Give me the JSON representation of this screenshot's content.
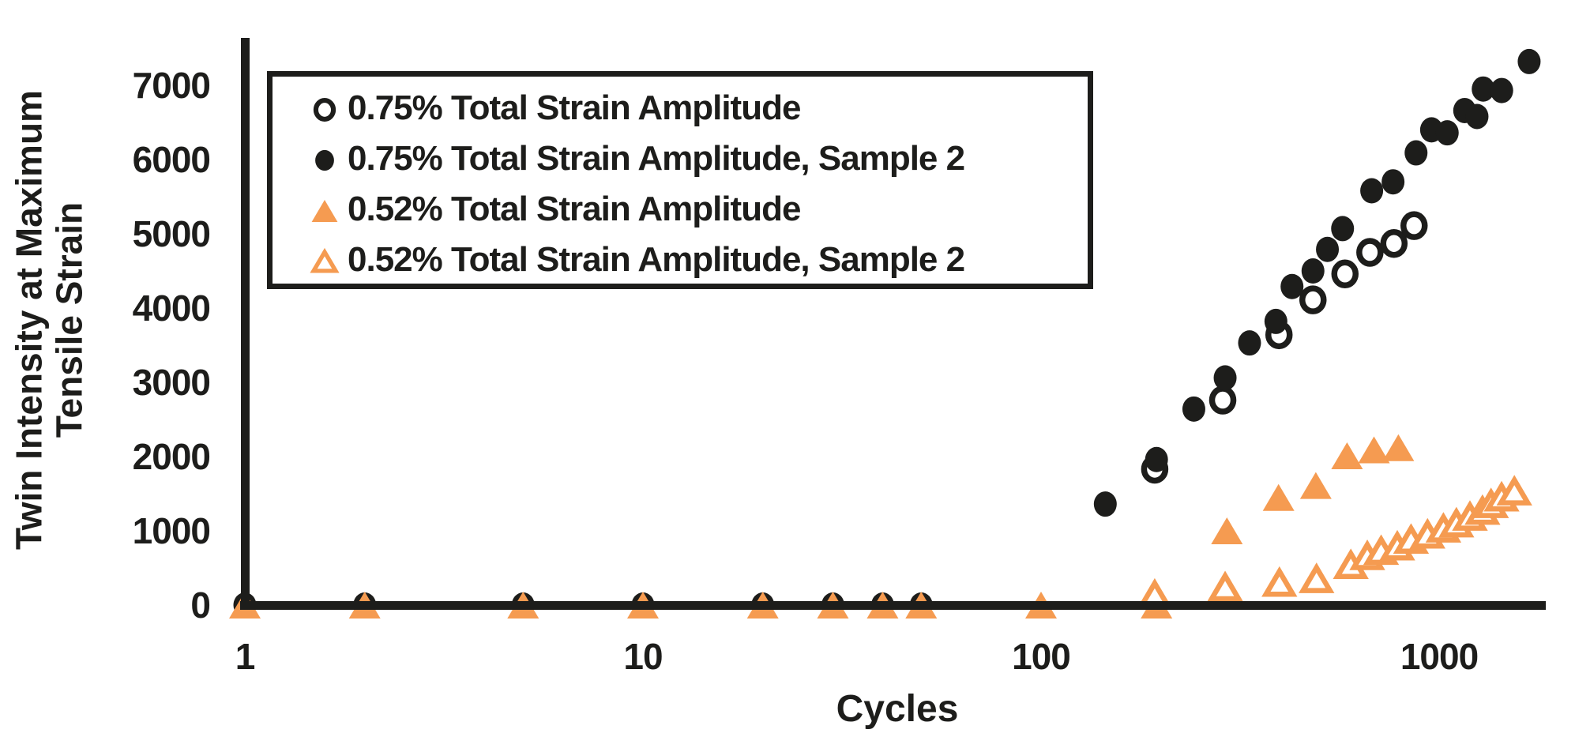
{
  "chart_data": {
    "type": "scatter",
    "title": "",
    "xlabel": "Cycles",
    "ylabel": "Twin Intensity at Maximum Tensile Strain",
    "ylabel_lines": [
      "Twin Intensity at  Maximum",
      "Tensile Strain"
    ],
    "x_scale": "log",
    "y_scale": "linear",
    "xlim": [
      1,
      2000
    ],
    "ylim": [
      0,
      7400
    ],
    "x_ticks": [
      "1",
      "10",
      "100",
      "1000"
    ],
    "y_ticks": [
      "0",
      "1000",
      "2000",
      "3000",
      "4000",
      "5000",
      "6000",
      "7000"
    ],
    "grid": false,
    "legend_position": "upper-left",
    "colors": {
      "black": "#1d1d1b",
      "orange": "#F59B51",
      "open_face": "#ffffff"
    },
    "series": [
      {
        "name": "0.75% Total Strain Amplitude",
        "marker": "circle-open",
        "color": "#1d1d1b",
        "points": [
          [
            193,
            1830
          ],
          [
            286,
            2760
          ],
          [
            396,
            3640
          ],
          [
            482,
            4110
          ],
          [
            580,
            4460
          ],
          [
            670,
            4750
          ],
          [
            770,
            4870
          ],
          [
            865,
            5110
          ]
        ]
      },
      {
        "name": "0.75% Total Strain Amplitude, Sample 2",
        "marker": "circle-filled",
        "color": "#1d1d1b",
        "points": [
          [
            1,
            0
          ],
          [
            2,
            0
          ],
          [
            5,
            0
          ],
          [
            10,
            0
          ],
          [
            20,
            0
          ],
          [
            30,
            0
          ],
          [
            40,
            0
          ],
          [
            50,
            0
          ],
          [
            145,
            1360
          ],
          [
            195,
            1960
          ],
          [
            242,
            2640
          ],
          [
            290,
            3060
          ],
          [
            334,
            3530
          ],
          [
            389,
            3820
          ],
          [
            427,
            4290
          ],
          [
            482,
            4500
          ],
          [
            524,
            4790
          ],
          [
            572,
            5070
          ],
          [
            677,
            5580
          ],
          [
            766,
            5700
          ],
          [
            875,
            6090
          ],
          [
            957,
            6400
          ],
          [
            1048,
            6360
          ],
          [
            1159,
            6660
          ],
          [
            1245,
            6580
          ],
          [
            1290,
            6950
          ],
          [
            1436,
            6930
          ],
          [
            1683,
            7320
          ]
        ]
      },
      {
        "name": "0.52% Total Strain Amplitude",
        "marker": "triangle-filled",
        "color": "#F59B51",
        "points": [
          [
            1,
            0
          ],
          [
            2,
            0
          ],
          [
            5,
            0
          ],
          [
            10,
            0
          ],
          [
            20,
            0
          ],
          [
            30,
            0
          ],
          [
            40,
            0
          ],
          [
            50,
            0
          ],
          [
            100,
            0
          ],
          [
            195,
            0
          ],
          [
            293,
            1000
          ],
          [
            395,
            1450
          ],
          [
            490,
            1610
          ],
          [
            587,
            2010
          ],
          [
            686,
            2090
          ],
          [
            790,
            2120
          ]
        ]
      },
      {
        "name": "0.52% Total Strain Amplitude, Sample 2",
        "marker": "triangle-open",
        "color": "#F59B51",
        "points": [
          [
            193,
            140
          ],
          [
            290,
            240
          ],
          [
            397,
            300
          ],
          [
            492,
            350
          ],
          [
            600,
            540
          ],
          [
            660,
            660
          ],
          [
            715,
            730
          ],
          [
            785,
            790
          ],
          [
            850,
            880
          ],
          [
            935,
            950
          ],
          [
            1025,
            1030
          ],
          [
            1105,
            1100
          ],
          [
            1195,
            1190
          ],
          [
            1285,
            1270
          ],
          [
            1350,
            1360
          ],
          [
            1435,
            1450
          ],
          [
            1545,
            1530
          ]
        ]
      }
    ]
  },
  "legend": {
    "entries": [
      {
        "marker": "circle-open",
        "label": "0.75% Total Strain Amplitude"
      },
      {
        "marker": "circle-filled",
        "label": "0.75% Total Strain Amplitude, Sample 2"
      },
      {
        "marker": "triangle-filled",
        "label": "0.52% Total Strain Amplitude"
      },
      {
        "marker": "triangle-open",
        "label": "0.52% Total Strain Amplitude, Sample 2"
      }
    ]
  }
}
